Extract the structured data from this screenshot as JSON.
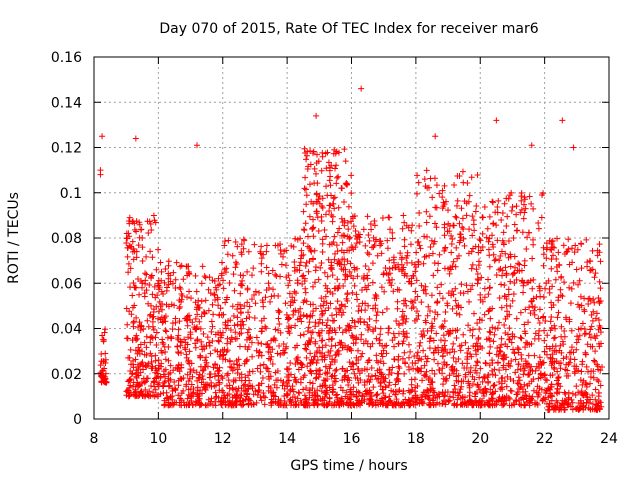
{
  "chart_data": {
    "type": "scatter",
    "title": "Day 070 of 2015, Rate Of TEC Index for receiver mar6",
    "xlabel": "GPS time / hours",
    "ylabel": "ROTI / TECUs",
    "xlim": [
      8,
      24
    ],
    "ylim": [
      0,
      0.16
    ],
    "x_ticks": [
      8,
      10,
      12,
      14,
      16,
      18,
      20,
      22,
      24
    ],
    "x_tick_labels": [
      "8",
      "10",
      "12",
      "14",
      "16",
      "18",
      "20",
      "22",
      "24"
    ],
    "y_ticks": [
      0,
      0.02,
      0.04,
      0.06,
      0.08,
      0.1,
      0.12,
      0.14,
      0.16
    ],
    "y_tick_labels": [
      "0",
      "0.02",
      "0.04",
      "0.06",
      "0.08",
      "0.1",
      "0.12",
      "0.14",
      "0.16"
    ],
    "grid": true,
    "marker": "plus",
    "color": "#ff0000",
    "notable_points": [
      {
        "x": 8.25,
        "y": 0.125
      },
      {
        "x": 8.2,
        "y": 0.11
      },
      {
        "x": 8.2,
        "y": 0.108
      },
      {
        "x": 16.3,
        "y": 0.146
      },
      {
        "x": 14.9,
        "y": 0.134
      },
      {
        "x": 20.5,
        "y": 0.132
      },
      {
        "x": 22.55,
        "y": 0.132
      },
      {
        "x": 9.3,
        "y": 0.124
      },
      {
        "x": 18.6,
        "y": 0.125
      },
      {
        "x": 11.2,
        "y": 0.121
      },
      {
        "x": 21.6,
        "y": 0.121
      },
      {
        "x": 22.9,
        "y": 0.12
      }
    ],
    "series": [
      {
        "name": "ROTI",
        "segments": [
          {
            "x_start": 8.2,
            "x_end": 8.4,
            "y_low": 0.016,
            "y_high": 0.04,
            "density": 40
          },
          {
            "x_start": 9.0,
            "x_end": 10.0,
            "y_low": 0.01,
            "y_high": 0.09,
            "density": 260
          },
          {
            "x_start": 10.0,
            "x_end": 12.0,
            "y_low": 0.006,
            "y_high": 0.07,
            "density": 420
          },
          {
            "x_start": 12.0,
            "x_end": 14.5,
            "y_low": 0.006,
            "y_high": 0.08,
            "density": 480
          },
          {
            "x_start": 14.5,
            "x_end": 16.0,
            "y_low": 0.006,
            "y_high": 0.12,
            "density": 520
          },
          {
            "x_start": 16.0,
            "x_end": 18.0,
            "y_low": 0.006,
            "y_high": 0.09,
            "density": 460
          },
          {
            "x_start": 18.0,
            "x_end": 20.0,
            "y_low": 0.006,
            "y_high": 0.11,
            "density": 480
          },
          {
            "x_start": 20.0,
            "x_end": 22.0,
            "y_low": 0.006,
            "y_high": 0.1,
            "density": 460
          },
          {
            "x_start": 22.0,
            "x_end": 23.8,
            "y_low": 0.004,
            "y_high": 0.08,
            "density": 380
          }
        ]
      }
    ]
  }
}
